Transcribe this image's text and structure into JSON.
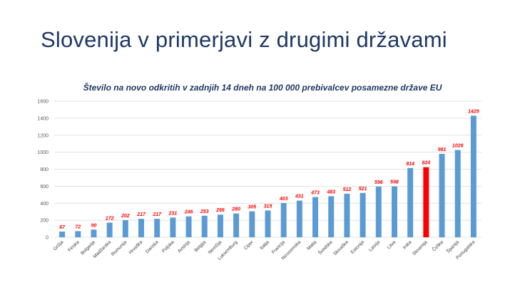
{
  "slide": {
    "title": "Slovenija v primerjavi z drugimi državami"
  },
  "chart_data": {
    "type": "bar",
    "title": "Število na novo odkritih v zadnjih 14 dneh na 100  000  prebivalcev posamezne države EU",
    "xlabel": "",
    "ylabel": "",
    "ylim": [
      0,
      1600
    ],
    "yticks": [
      0,
      200,
      400,
      600,
      800,
      1000,
      1200,
      1400,
      1600
    ],
    "grid": true,
    "legend": "none",
    "categories": [
      "Grčija",
      "Finska",
      "Bolgarija",
      "Madžarska",
      "Romunija",
      "Hrvaška",
      "Danska",
      "Poljska",
      "Avstrija",
      "Belgija",
      "Nemčija",
      "Luksemburg",
      "Ciper",
      "Italija",
      "Francija",
      "Nizozemska",
      "Malta",
      "Švedska",
      "Slovaška",
      "Estonija",
      "Latvija",
      "Litva",
      "Irska",
      "Slovenija",
      "Češka",
      "Španija",
      "Portugalska"
    ],
    "values": [
      67,
      72,
      90,
      172,
      202,
      217,
      217,
      231,
      246,
      253,
      266,
      280,
      305,
      315,
      403,
      431,
      473,
      483,
      512,
      521,
      596,
      598,
      814,
      824,
      981,
      1026,
      1429
    ],
    "highlight_category": "Slovenija",
    "colors": {
      "bar": "#5B9BD5",
      "highlight": "#FF0000",
      "data_label": "#FF0000",
      "grid": "#D9D9D9",
      "title": "#1F3864"
    }
  }
}
